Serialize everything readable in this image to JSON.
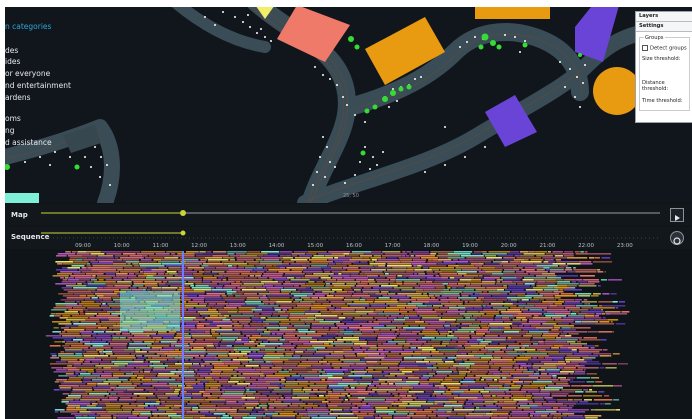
{
  "categories": {
    "header": "n categories",
    "items": [
      "des",
      "ides",
      "or everyone",
      "nd entertainment",
      "ardens",
      "oms",
      "ng",
      "d assistance"
    ]
  },
  "map": {
    "scale_label": "25, 50"
  },
  "panel": {
    "tab_layers": "Layers",
    "tab_settings": "Settings",
    "groups_legend": "Groups",
    "detect_groups": "Detect groups",
    "size_threshold": "Size threshold:",
    "distance_threshold": "Distance threshold:",
    "time_threshold": "Time threshold:"
  },
  "timeline": {
    "map_label": "Map",
    "sequence_label": "Sequence",
    "hours": [
      "09:00",
      "10:00",
      "11:00",
      "12:00",
      "13:00",
      "14:00",
      "15:00",
      "16:00",
      "17:00",
      "18:00",
      "19:00",
      "20:00",
      "21:00",
      "22:00",
      "23:00"
    ]
  },
  "colors": {
    "background": "#0f1419",
    "accent_yellow": "#c8d43a",
    "group_green": "#33dd33",
    "visitor_white": "#ffffff",
    "salmon": "#f07a6a",
    "orange": "#e89a10",
    "violet": "#6a44d6",
    "cyan": "#7ff0d8",
    "yellow": "#f2ee6a"
  }
}
